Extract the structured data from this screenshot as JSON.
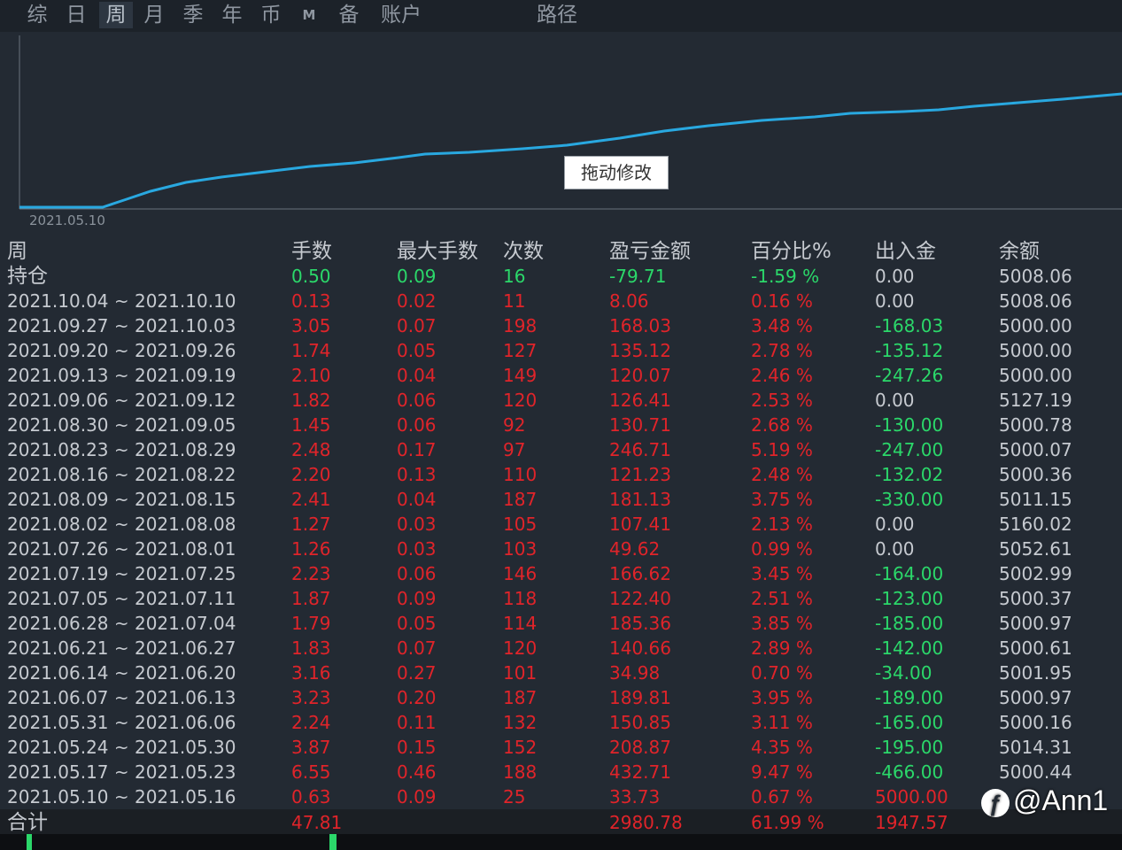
{
  "tabs": [
    {
      "label": "综",
      "active": false
    },
    {
      "label": "日",
      "active": false
    },
    {
      "label": "周",
      "active": true
    },
    {
      "label": "月",
      "active": false
    },
    {
      "label": "季",
      "active": false
    },
    {
      "label": "年",
      "active": false
    },
    {
      "label": "币",
      "active": false
    },
    {
      "label": "M",
      "active": false
    },
    {
      "label": "备",
      "active": false
    },
    {
      "label": "账户",
      "active": false
    },
    {
      "label": "路径",
      "active": false
    }
  ],
  "chart": {
    "drag_label": "拖动修改",
    "start_date": "2021.05.10",
    "line_color": "#29a8e0"
  },
  "headers": [
    "周",
    "手数",
    "最大手数",
    "次数",
    "盈亏金额",
    "百分比%",
    "出入金",
    "余额"
  ],
  "position_row": {
    "label": "持仓",
    "lots": "0.50",
    "max_lots": "0.09",
    "count": "16",
    "pnl": "-79.71",
    "pct": "-1.59 %",
    "flow": "0.00",
    "balance": "5008.06"
  },
  "rows": [
    {
      "week": "2021.10.04 ~ 2021.10.10",
      "lots": "0.13",
      "max_lots": "0.02",
      "count": "11",
      "pnl": "8.06",
      "pct": "0.16 %",
      "flow": "0.00",
      "balance": "5008.06",
      "flow_color": "gray"
    },
    {
      "week": "2021.09.27 ~ 2021.10.03",
      "lots": "3.05",
      "max_lots": "0.07",
      "count": "198",
      "pnl": "168.03",
      "pct": "3.48 %",
      "flow": "-168.03",
      "balance": "5000.00",
      "flow_color": "green"
    },
    {
      "week": "2021.09.20 ~ 2021.09.26",
      "lots": "1.74",
      "max_lots": "0.05",
      "count": "127",
      "pnl": "135.12",
      "pct": "2.78 %",
      "flow": "-135.12",
      "balance": "5000.00",
      "flow_color": "green"
    },
    {
      "week": "2021.09.13 ~ 2021.09.19",
      "lots": "2.10",
      "max_lots": "0.04",
      "count": "149",
      "pnl": "120.07",
      "pct": "2.46 %",
      "flow": "-247.26",
      "balance": "5000.00",
      "flow_color": "green"
    },
    {
      "week": "2021.09.06 ~ 2021.09.12",
      "lots": "1.82",
      "max_lots": "0.06",
      "count": "120",
      "pnl": "126.41",
      "pct": "2.53 %",
      "flow": "0.00",
      "balance": "5127.19",
      "flow_color": "gray"
    },
    {
      "week": "2021.08.30 ~ 2021.09.05",
      "lots": "1.45",
      "max_lots": "0.06",
      "count": "92",
      "pnl": "130.71",
      "pct": "2.68 %",
      "flow": "-130.00",
      "balance": "5000.78",
      "flow_color": "green"
    },
    {
      "week": "2021.08.23 ~ 2021.08.29",
      "lots": "2.48",
      "max_lots": "0.17",
      "count": "97",
      "pnl": "246.71",
      "pct": "5.19 %",
      "flow": "-247.00",
      "balance": "5000.07",
      "flow_color": "green"
    },
    {
      "week": "2021.08.16 ~ 2021.08.22",
      "lots": "2.20",
      "max_lots": "0.13",
      "count": "110",
      "pnl": "121.23",
      "pct": "2.48 %",
      "flow": "-132.02",
      "balance": "5000.36",
      "flow_color": "green"
    },
    {
      "week": "2021.08.09 ~ 2021.08.15",
      "lots": "2.41",
      "max_lots": "0.04",
      "count": "187",
      "pnl": "181.13",
      "pct": "3.75 %",
      "flow": "-330.00",
      "balance": "5011.15",
      "flow_color": "green"
    },
    {
      "week": "2021.08.02 ~ 2021.08.08",
      "lots": "1.27",
      "max_lots": "0.03",
      "count": "105",
      "pnl": "107.41",
      "pct": "2.13 %",
      "flow": "0.00",
      "balance": "5160.02",
      "flow_color": "gray"
    },
    {
      "week": "2021.07.26 ~ 2021.08.01",
      "lots": "1.26",
      "max_lots": "0.03",
      "count": "103",
      "pnl": "49.62",
      "pct": "0.99 %",
      "flow": "0.00",
      "balance": "5052.61",
      "flow_color": "gray"
    },
    {
      "week": "2021.07.19 ~ 2021.07.25",
      "lots": "2.23",
      "max_lots": "0.06",
      "count": "146",
      "pnl": "166.62",
      "pct": "3.45 %",
      "flow": "-164.00",
      "balance": "5002.99",
      "flow_color": "green"
    },
    {
      "week": "2021.07.05 ~ 2021.07.11",
      "lots": "1.87",
      "max_lots": "0.09",
      "count": "118",
      "pnl": "122.40",
      "pct": "2.51 %",
      "flow": "-123.00",
      "balance": "5000.37",
      "flow_color": "green"
    },
    {
      "week": "2021.06.28 ~ 2021.07.04",
      "lots": "1.79",
      "max_lots": "0.05",
      "count": "114",
      "pnl": "185.36",
      "pct": "3.85 %",
      "flow": "-185.00",
      "balance": "5000.97",
      "flow_color": "green"
    },
    {
      "week": "2021.06.21 ~ 2021.06.27",
      "lots": "1.83",
      "max_lots": "0.07",
      "count": "120",
      "pnl": "140.66",
      "pct": "2.89 %",
      "flow": "-142.00",
      "balance": "5000.61",
      "flow_color": "green"
    },
    {
      "week": "2021.06.14 ~ 2021.06.20",
      "lots": "3.16",
      "max_lots": "0.27",
      "count": "101",
      "pnl": "34.98",
      "pct": "0.70 %",
      "flow": "-34.00",
      "balance": "5001.95",
      "flow_color": "green"
    },
    {
      "week": "2021.06.07 ~ 2021.06.13",
      "lots": "3.23",
      "max_lots": "0.20",
      "count": "187",
      "pnl": "189.81",
      "pct": "3.95 %",
      "flow": "-189.00",
      "balance": "5000.97",
      "flow_color": "green"
    },
    {
      "week": "2021.05.31 ~ 2021.06.06",
      "lots": "2.24",
      "max_lots": "0.11",
      "count": "132",
      "pnl": "150.85",
      "pct": "3.11 %",
      "flow": "-165.00",
      "balance": "5000.16",
      "flow_color": "green"
    },
    {
      "week": "2021.05.24 ~ 2021.05.30",
      "lots": "3.87",
      "max_lots": "0.15",
      "count": "152",
      "pnl": "208.87",
      "pct": "4.35 %",
      "flow": "-195.00",
      "balance": "5014.31",
      "flow_color": "green"
    },
    {
      "week": "2021.05.17 ~ 2021.05.23",
      "lots": "6.55",
      "max_lots": "0.46",
      "count": "188",
      "pnl": "432.71",
      "pct": "9.47 %",
      "flow": "-466.00",
      "balance": "5000.44",
      "flow_color": "green"
    },
    {
      "week": "2021.05.10 ~ 2021.05.16",
      "lots": "0.63",
      "max_lots": "0.09",
      "count": "25",
      "pnl": "33.73",
      "pct": "0.67 %",
      "flow": "5000.00",
      "balance": "",
      "flow_color": "red"
    }
  ],
  "total_row": {
    "label": "合计",
    "lots": "47.81",
    "pnl": "2980.78",
    "pct": "61.99 %",
    "flow": "1947.57"
  },
  "watermark": {
    "text": "@Ann1",
    "icon": "weibo-icon"
  }
}
